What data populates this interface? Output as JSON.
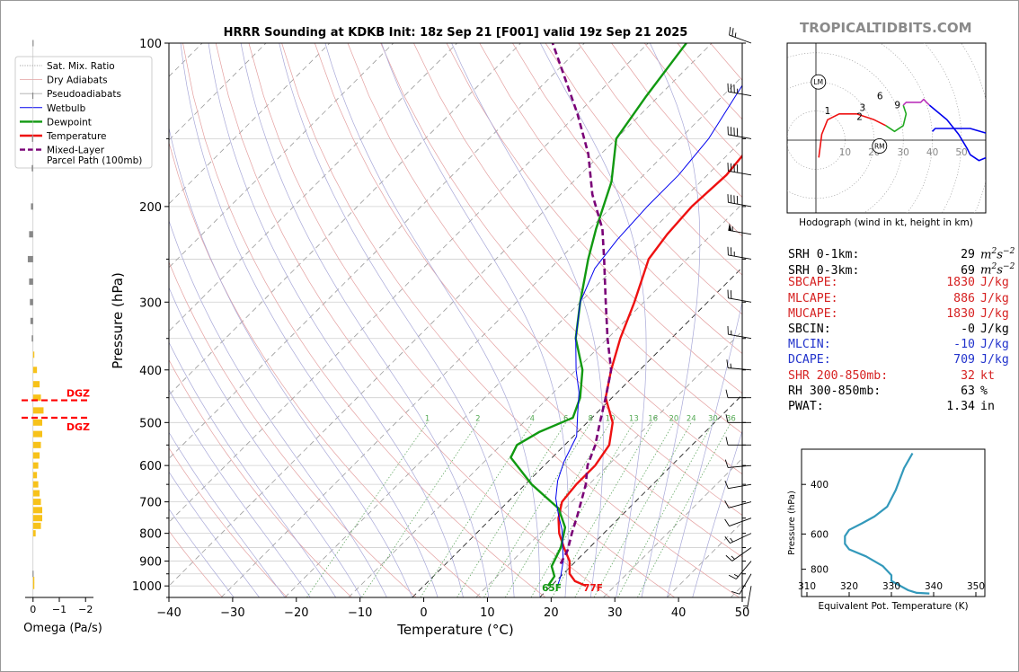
{
  "branding": "TROPICALTIDBITS.COM",
  "colors": {
    "temperature": "#ee1111",
    "dewpoint": "#119911",
    "parcel": "#7a0077",
    "wetbulb": "#0000ee",
    "dry_adiabat": "#e4a0a0",
    "pseudoadiabat": "#a8a8d8",
    "mixing_ratio": "#66aa66",
    "omega": "#f7c21a",
    "theta_e": "#3399bb",
    "red_text": "#d62222",
    "blue_text": "#2233cc"
  },
  "chart_data": [
    {
      "type": "skew-t",
      "title": "HRRR Sounding at KDKB Init: 18z Sep 21 [F001] valid 19z Sep 21 2025",
      "xlabel": "Temperature (°C)",
      "ylabel": "Pressure (hPa)",
      "xlim": [
        -40,
        50
      ],
      "ylim": [
        1050,
        100
      ],
      "y_scale": "log",
      "x_ticks": [
        "−40",
        "−30",
        "−20",
        "−10",
        "0",
        "10",
        "20",
        "30",
        "40",
        "50"
      ],
      "y_ticks": [
        "100",
        "200",
        "300",
        "400",
        "500",
        "600",
        "700",
        "800",
        "900",
        "1000"
      ],
      "mixing_ratio_labels": [
        "1",
        "2",
        "4",
        "6",
        "8",
        "10",
        "13",
        "16",
        "20",
        "24",
        "30",
        "36"
      ],
      "surface_labels": {
        "dewpoint": "65F",
        "temperature": "77F"
      },
      "legend": {
        "placement": "left",
        "entries": [
          "Sat. Mix. Ratio",
          "Dry Adiabats",
          "Pseudoadiabats",
          "Wetbulb",
          "Dewpoint",
          "Temperature",
          "Mixed-Layer\nParcel Path (100mb)"
        ]
      },
      "series": [
        {
          "name": "Temperature",
          "points": [
            [
              25.5,
              1000
            ],
            [
              23,
              980
            ],
            [
              21,
              950
            ],
            [
              19,
              900
            ],
            [
              16,
              850
            ],
            [
              13,
              800
            ],
            [
              10.5,
              750
            ],
            [
              8.5,
              700
            ],
            [
              8,
              650
            ],
            [
              8,
              600
            ],
            [
              7,
              550
            ],
            [
              4,
              500
            ],
            [
              -1,
              450
            ],
            [
              -4.5,
              400
            ],
            [
              -8,
              350
            ],
            [
              -11.5,
              300
            ],
            [
              -16,
              250
            ],
            [
              -17,
              225
            ],
            [
              -17.5,
              200
            ],
            [
              -17,
              175
            ],
            [
              -18,
              150
            ],
            [
              -20.5,
              125
            ],
            [
              -24,
              100
            ]
          ]
        },
        {
          "name": "Dewpoint",
          "points": [
            [
              19.5,
              1000
            ],
            [
              19,
              960
            ],
            [
              17,
              920
            ],
            [
              15.5,
              850
            ],
            [
              13,
              780
            ],
            [
              9,
              720
            ],
            [
              1,
              650
            ],
            [
              -6.5,
              580
            ],
            [
              -7.5,
              550
            ],
            [
              -6,
              520
            ],
            [
              -3,
              490
            ],
            [
              -5,
              450
            ],
            [
              -9,
              400
            ],
            [
              -15,
              350
            ],
            [
              -20,
              300
            ],
            [
              -25.5,
              250
            ],
            [
              -29,
              220
            ],
            [
              -34,
              180
            ],
            [
              -40,
              150
            ],
            [
              -42,
              125
            ],
            [
              -44,
              100
            ]
          ]
        },
        {
          "name": "Wetbulb",
          "points": [
            [
              21,
              1000
            ],
            [
              20,
              960
            ],
            [
              18,
              900
            ],
            [
              15.8,
              850
            ],
            [
              13,
              790
            ],
            [
              10,
              740
            ],
            [
              7,
              690
            ],
            [
              4.5,
              640
            ],
            [
              2.5,
              590
            ],
            [
              0.5,
              530
            ],
            [
              -3,
              480
            ],
            [
              -6,
              440
            ],
            [
              -10,
              400
            ],
            [
              -15,
              350
            ],
            [
              -20,
              300
            ],
            [
              -23,
              260
            ],
            [
              -24,
              230
            ],
            [
              -24.5,
              200
            ],
            [
              -24.5,
              175
            ],
            [
              -25.5,
              150
            ],
            [
              -28,
              125
            ],
            [
              -31,
              100
            ]
          ]
        },
        {
          "name": "Mixed-Layer Parcel Path (100mb)",
          "points": [
            [
              18,
              910
            ],
            [
              17,
              860
            ],
            [
              15,
              800
            ],
            [
              13,
              740
            ],
            [
              11.5,
              700
            ],
            [
              9.5,
              650
            ],
            [
              6.8,
              600
            ],
            [
              4.8,
              550
            ],
            [
              2,
              500
            ],
            [
              -1,
              450
            ],
            [
              -4.5,
              400
            ],
            [
              -10,
              350
            ],
            [
              -16,
              300
            ],
            [
              -23,
              250
            ],
            [
              -28,
              220
            ],
            [
              -35,
              190
            ],
            [
              -42,
              160
            ],
            [
              -50,
              135
            ],
            [
              -58,
              115
            ],
            [
              -65,
              100
            ]
          ]
        }
      ],
      "wind_barbs_kt": [
        {
          "p": 1000,
          "dir": 190,
          "spd": 5
        },
        {
          "p": 950,
          "dir": 210,
          "spd": 10
        },
        {
          "p": 900,
          "dir": 220,
          "spd": 15
        },
        {
          "p": 850,
          "dir": 235,
          "spd": 15
        },
        {
          "p": 800,
          "dir": 245,
          "spd": 15
        },
        {
          "p": 750,
          "dir": 250,
          "spd": 10
        },
        {
          "p": 700,
          "dir": 255,
          "spd": 10
        },
        {
          "p": 650,
          "dir": 260,
          "spd": 10
        },
        {
          "p": 600,
          "dir": 265,
          "spd": 10
        },
        {
          "p": 550,
          "dir": 270,
          "spd": 10
        },
        {
          "p": 500,
          "dir": 270,
          "spd": 10
        },
        {
          "p": 450,
          "dir": 270,
          "spd": 10
        },
        {
          "p": 400,
          "dir": 275,
          "spd": 15
        },
        {
          "p": 350,
          "dir": 280,
          "spd": 15
        },
        {
          "p": 300,
          "dir": 280,
          "spd": 20
        },
        {
          "p": 250,
          "dir": 280,
          "spd": 25
        },
        {
          "p": 225,
          "dir": 280,
          "spd": 55
        },
        {
          "p": 200,
          "dir": 280,
          "spd": 40
        },
        {
          "p": 175,
          "dir": 280,
          "spd": 40
        },
        {
          "p": 150,
          "dir": 280,
          "spd": 40
        },
        {
          "p": 125,
          "dir": 280,
          "spd": 35
        },
        {
          "p": 100,
          "dir": 290,
          "spd": 25
        }
      ]
    },
    {
      "type": "bar",
      "orientation": "horizontal",
      "xlabel": "Omega (Pa/s)",
      "x_ticks": [
        "0",
        "−1",
        "−2"
      ],
      "xlim": [
        0.3,
        -2.3
      ],
      "dgz_label": "DGZ",
      "dgz_bounds_hpa": [
        455,
        490
      ],
      "values": [
        {
          "p": 1000,
          "omega": -0.05
        },
        {
          "p": 975,
          "omega": -0.05
        },
        {
          "p": 950,
          "omega": 0.02
        },
        {
          "p": 800,
          "omega": -0.1
        },
        {
          "p": 775,
          "omega": -0.3
        },
        {
          "p": 750,
          "omega": -0.35
        },
        {
          "p": 725,
          "omega": -0.35
        },
        {
          "p": 700,
          "omega": -0.3
        },
        {
          "p": 675,
          "omega": -0.25
        },
        {
          "p": 650,
          "omega": -0.2
        },
        {
          "p": 625,
          "omega": -0.15
        },
        {
          "p": 600,
          "omega": -0.2
        },
        {
          "p": 575,
          "omega": -0.25
        },
        {
          "p": 550,
          "omega": -0.3
        },
        {
          "p": 525,
          "omega": -0.35
        },
        {
          "p": 500,
          "omega": -0.35
        },
        {
          "p": 475,
          "omega": -0.4
        },
        {
          "p": 450,
          "omega": -0.3
        },
        {
          "p": 425,
          "omega": -0.25
        },
        {
          "p": 400,
          "omega": -0.15
        },
        {
          "p": 375,
          "omega": -0.05
        },
        {
          "p": 350,
          "omega": 0.05
        },
        {
          "p": 325,
          "omega": 0.1
        },
        {
          "p": 300,
          "omega": 0.12
        },
        {
          "p": 275,
          "omega": 0.15
        },
        {
          "p": 250,
          "omega": 0.2
        },
        {
          "p": 225,
          "omega": 0.15
        },
        {
          "p": 200,
          "omega": 0.08
        },
        {
          "p": 170,
          "omega": 0.05
        },
        {
          "p": 150,
          "omega": 0.04
        },
        {
          "p": 125,
          "omega": 0.03
        },
        {
          "p": 100,
          "omega": 0.02
        }
      ]
    },
    {
      "type": "line",
      "name": "hodograph",
      "caption": "Hodograph (wind in kt, height in km)",
      "ring_labels": [
        "10",
        "20",
        "30",
        "40",
        "50"
      ],
      "height_labels": [
        "1",
        "2",
        "3",
        "6",
        "9"
      ],
      "markers": [
        "LM",
        "RM"
      ],
      "segments": [
        {
          "color": "#ee1111",
          "points": [
            [
              1,
              -6
            ],
            [
              2,
              2
            ],
            [
              4,
              7
            ],
            [
              8,
              9
            ],
            [
              14,
              9
            ],
            [
              20,
              7
            ],
            [
              24,
              5
            ]
          ]
        },
        {
          "color": "#22aa22",
          "points": [
            [
              24,
              5
            ],
            [
              27,
              3
            ],
            [
              30,
              5
            ],
            [
              31,
              9
            ],
            [
              30,
              12
            ]
          ]
        },
        {
          "color": "#bb33bb",
          "points": [
            [
              30,
              12
            ],
            [
              31,
              13
            ],
            [
              34,
              13
            ],
            [
              36,
              13
            ],
            [
              37,
              14
            ],
            [
              38,
              13
            ],
            [
              39,
              12
            ]
          ]
        },
        {
          "color": "#0000ee",
          "points": [
            [
              39,
              12
            ],
            [
              45,
              7
            ],
            [
              49,
              2
            ],
            [
              52,
              -3
            ],
            [
              53,
              -5
            ],
            [
              56,
              -7
            ],
            [
              61,
              -5
            ],
            [
              66,
              -3
            ],
            [
              70,
              -1
            ],
            [
              53,
              4
            ],
            [
              41,
              4
            ],
            [
              40,
              3
            ]
          ]
        }
      ],
      "marker_positions": {
        "LM": [
          -1,
          20
        ],
        "RM": [
          20,
          -2
        ]
      }
    },
    {
      "type": "line",
      "name": "equivalent potential temperature",
      "xlabel": "Equivalent Pot. Temperature (K)",
      "ylabel": "Pressure (hPa)",
      "xlim": [
        310,
        350
      ],
      "ylim": [
        1000,
        300
      ],
      "x_ticks": [
        "310",
        "320",
        "330",
        "340",
        "350"
      ],
      "y_ticks": [
        "400",
        "600",
        "800"
      ],
      "points": [
        [
          339,
          975
        ],
        [
          336,
          970
        ],
        [
          334,
          950
        ],
        [
          332,
          915
        ],
        [
          330,
          880
        ],
        [
          330,
          840
        ],
        [
          328,
          780
        ],
        [
          324,
          720
        ],
        [
          320,
          680
        ],
        [
          319,
          650
        ],
        [
          319,
          610
        ],
        [
          320,
          580
        ],
        [
          323,
          550
        ],
        [
          326,
          520
        ],
        [
          329,
          480
        ],
        [
          331,
          420
        ],
        [
          333,
          350
        ],
        [
          335,
          310
        ]
      ]
    }
  ],
  "parameters": [
    {
      "label": "SRH 0-1km:",
      "value": "29",
      "unit": "m2s-2",
      "color": "black"
    },
    {
      "label": "SRH 0-3km:",
      "value": "69",
      "unit": "m2s-2",
      "color": "black"
    },
    {
      "label": "SBCAPE:",
      "value": "1830",
      "unit": "J/kg",
      "color": "red"
    },
    {
      "label": "MLCAPE:",
      "value": "886",
      "unit": "J/kg",
      "color": "red"
    },
    {
      "label": "MUCAPE:",
      "value": "1830",
      "unit": "J/kg",
      "color": "red"
    },
    {
      "label": "SBCIN:",
      "value": "-0",
      "unit": "J/kg",
      "color": "black"
    },
    {
      "label": "MLCIN:",
      "value": "-10",
      "unit": "J/kg",
      "color": "blue"
    },
    {
      "label": "DCAPE:",
      "value": "709",
      "unit": "J/kg",
      "color": "blue"
    },
    {
      "label": "SHR 200-850mb:",
      "value": "32",
      "unit": "kt",
      "color": "red"
    },
    {
      "label": "RH 300-850mb:",
      "value": "63",
      "unit": "%",
      "color": "black"
    },
    {
      "label": "PWAT:",
      "value": "1.34",
      "unit": "in",
      "color": "black"
    }
  ]
}
